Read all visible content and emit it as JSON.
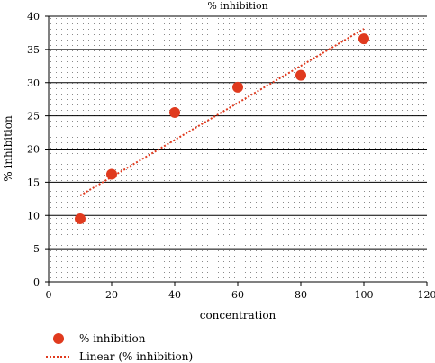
{
  "chart_data": {
    "type": "scatter",
    "title": "% inhibition",
    "xlabel": "concentration",
    "ylabel": "% inhibition",
    "xlim": [
      0,
      120
    ],
    "ylim": [
      0,
      40
    ],
    "x_ticks": [
      0,
      20,
      40,
      60,
      80,
      100,
      120
    ],
    "y_ticks": [
      0,
      5,
      10,
      15,
      20,
      25,
      30,
      35,
      40
    ],
    "grid": true,
    "legend_position": "bottom-left",
    "series": [
      {
        "name": "% inhibition",
        "kind": "scatter",
        "color": "#e03a1e",
        "x": [
          10,
          20,
          40,
          60,
          80,
          100
        ],
        "y": [
          9.5,
          16.2,
          25.5,
          29.3,
          31.1,
          36.6
        ]
      },
      {
        "name": "Linear (% inhibition)",
        "kind": "trendline",
        "color": "#e03a1e",
        "x": [
          10,
          100
        ],
        "y": [
          13.0,
          38.1
        ]
      }
    ]
  }
}
